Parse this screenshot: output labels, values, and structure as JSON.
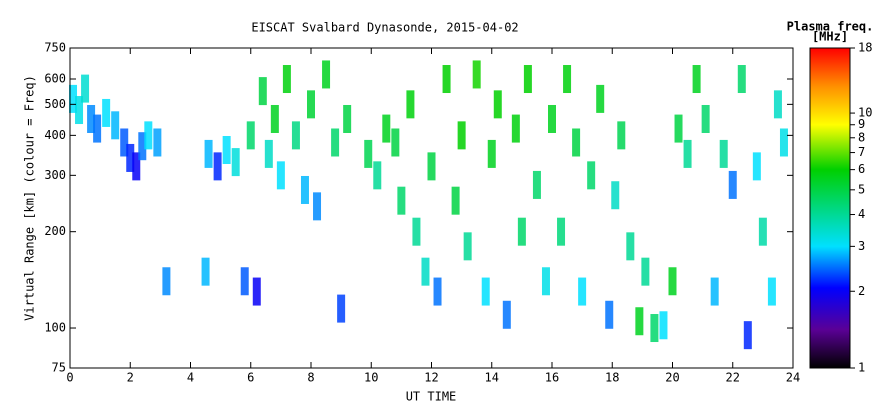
{
  "chart_data": {
    "type": "scatter",
    "title": "EISCAT Svalbard Dynasonde, 2015-04-02",
    "xlabel": "UT TIME",
    "ylabel": "Virtual Range [km] (colour = Freq)",
    "xlim": [
      0,
      24
    ],
    "xticks": [
      0,
      2,
      4,
      6,
      8,
      10,
      12,
      14,
      16,
      18,
      20,
      22,
      24
    ],
    "ylim": [
      75,
      750
    ],
    "yticks": [
      75,
      100,
      200,
      300,
      400,
      500,
      600,
      750
    ],
    "ylog": true,
    "colorbar": {
      "title": "Plasma freq.",
      "unit": "[MHz]",
      "lim": [
        1,
        18
      ],
      "ticks": [
        1,
        2,
        3,
        4,
        5,
        6,
        7,
        8,
        9,
        10,
        18
      ],
      "log": true
    },
    "x": [
      0.1,
      0.3,
      0.5,
      0.7,
      0.9,
      1.2,
      1.5,
      1.8,
      2.0,
      2.2,
      2.4,
      2.6,
      2.9,
      3.2,
      4.5,
      4.6,
      4.9,
      5.2,
      5.5,
      5.8,
      6.0,
      6.2,
      6.4,
      6.6,
      6.8,
      7.0,
      7.2,
      7.5,
      7.8,
      8.0,
      8.2,
      8.5,
      8.8,
      9.0,
      9.2,
      9.9,
      10.2,
      10.5,
      10.8,
      11.0,
      11.3,
      11.5,
      11.8,
      12.0,
      12.2,
      12.5,
      12.8,
      13.0,
      13.2,
      13.5,
      13.8,
      14.0,
      14.2,
      14.5,
      14.8,
      15.0,
      15.2,
      15.5,
      15.8,
      16.0,
      16.3,
      16.5,
      16.8,
      17.0,
      17.3,
      17.6,
      17.9,
      18.1,
      18.3,
      18.6,
      18.9,
      19.1,
      19.4,
      19.7,
      20.0,
      20.2,
      20.5,
      20.8,
      21.1,
      21.4,
      21.7,
      22.0,
      22.3,
      22.5,
      22.8,
      23.0,
      23.3,
      23.5,
      23.7
    ],
    "y": [
      520,
      480,
      560,
      450,
      420,
      470,
      430,
      380,
      340,
      320,
      370,
      400,
      380,
      140,
      150,
      350,
      320,
      360,
      330,
      140,
      400,
      130,
      550,
      350,
      450,
      300,
      600,
      400,
      270,
      500,
      240,
      620,
      380,
      115,
      450,
      350,
      300,
      420,
      380,
      250,
      500,
      200,
      150,
      320,
      130,
      600,
      250,
      400,
      180,
      620,
      130,
      350,
      500,
      110,
      420,
      200,
      600,
      280,
      140,
      450,
      200,
      600,
      380,
      130,
      300,
      520,
      110,
      260,
      400,
      180,
      105,
      150,
      100,
      102,
      140,
      420,
      350,
      600,
      450,
      130,
      350,
      280,
      600,
      95,
      320,
      200,
      130,
      500,
      380
    ],
    "c": [
      3,
      3.2,
      3.4,
      2.6,
      2.5,
      3,
      2.8,
      2.4,
      2.2,
      2,
      2.5,
      3,
      2.7,
      2.6,
      2.8,
      2.8,
      2.2,
      3,
      3.3,
      2.4,
      4.5,
      2,
      5,
      3.5,
      5.5,
      3,
      5.8,
      4.2,
      2.8,
      5.2,
      2.6,
      5.5,
      4.5,
      2.3,
      5,
      4.8,
      4,
      5.5,
      5,
      4.5,
      5.8,
      4,
      3.5,
      5,
      2.5,
      6,
      5,
      6,
      4,
      6.2,
      3,
      5.5,
      6,
      2.5,
      5.8,
      4.5,
      6,
      4.5,
      3.2,
      5.5,
      4.3,
      5.8,
      5,
      3,
      4.5,
      5.5,
      2.5,
      3.5,
      4.8,
      4,
      5.5,
      4,
      4.5,
      3,
      5.5,
      5,
      4,
      5.5,
      4.5,
      2.8,
      4,
      2.5,
      4.5,
      2.2,
      3,
      3.8,
      3,
      3.5,
      3.2
    ]
  }
}
